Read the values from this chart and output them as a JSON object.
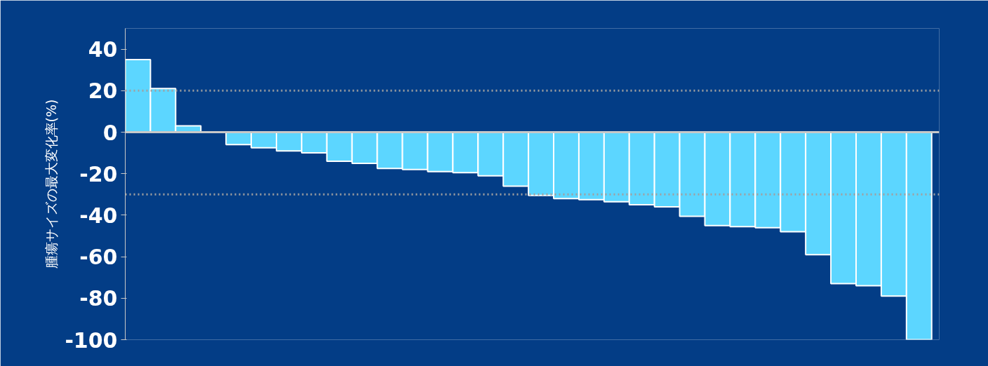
{
  "chart_data": {
    "type": "bar",
    "ylabel": "腫瘍サイズの最大変化率(%)",
    "categories": [
      null,
      null,
      null,
      null,
      null,
      null,
      null,
      null,
      null,
      null,
      null,
      null,
      null,
      null,
      null,
      null,
      null,
      null,
      null,
      null,
      null,
      null,
      null,
      null,
      null,
      null,
      null,
      null,
      null,
      null,
      null,
      null
    ],
    "values": [
      35,
      21,
      3,
      null,
      -6,
      -7.5,
      -9,
      -10,
      -14,
      -15,
      -17.5,
      -18,
      -19,
      -19.5,
      -21,
      -26,
      -30.5,
      -32,
      -32.5,
      -33.5,
      -35,
      -36,
      -40.5,
      -45,
      -45.5,
      -46,
      -48,
      -59,
      -73,
      -74,
      -79,
      -100
    ],
    "color": "#5cd6ff",
    "ylim": [
      -100,
      50
    ],
    "yticks": [
      40,
      20,
      0,
      -20,
      -40,
      -60,
      -80,
      -100
    ],
    "ref_lines": [
      {
        "axis": "y",
        "value": 20,
        "color": "#a0a0a0",
        "line_style": "dotted"
      },
      {
        "axis": "y",
        "value": -30,
        "color": "#a0a0a0",
        "line_style": "dotted"
      }
    ],
    "grid": false,
    "tick_labels": "y"
  }
}
